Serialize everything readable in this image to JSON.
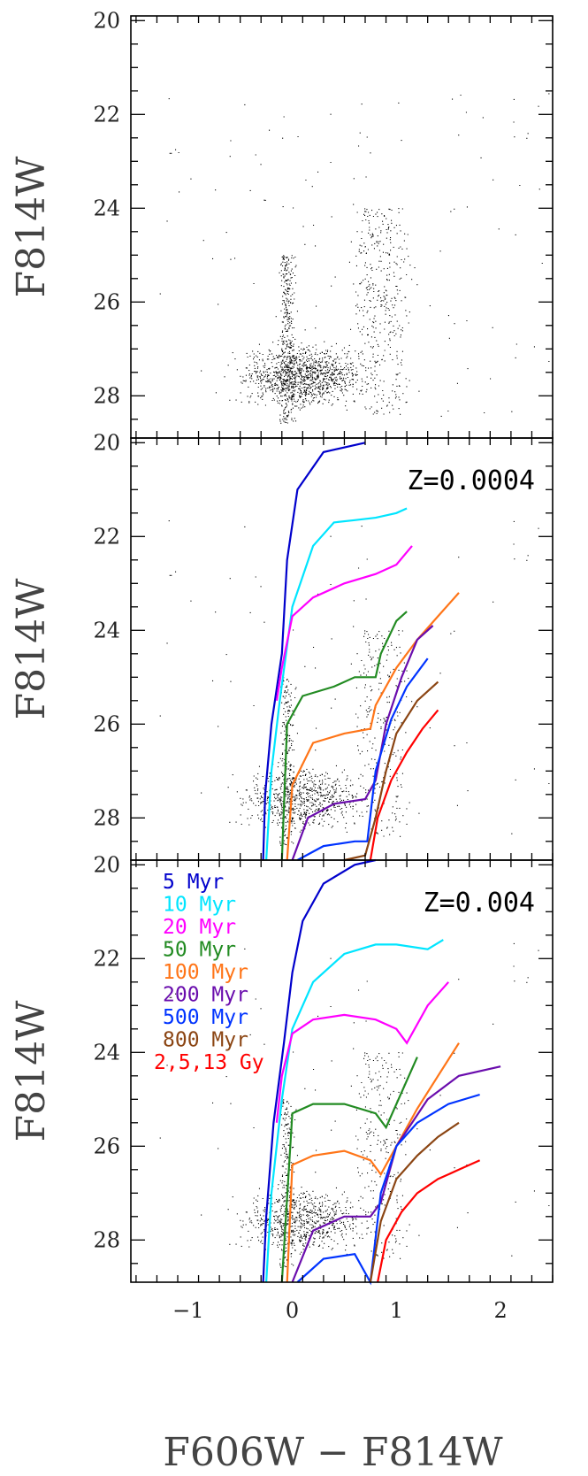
{
  "chart_data": [
    {
      "type": "scatter",
      "panel": "observed",
      "xlabel": "",
      "ylabel": "F814W",
      "xlim": [
        -1.55,
        2.5
      ],
      "ylim": [
        28.9,
        19.9
      ],
      "y_ticks": [
        "20",
        "22",
        "24",
        "26",
        "28"
      ],
      "annotation": "",
      "series": [
        {
          "color": "#000000",
          "points_described": "observed stars: blue plume near color -0.1 to 0.1 (F814W 24.5-28.6), red giant branch near color 1.0-1.3 (F814W 23-28), dense clump of faint stars F814W 26.5-28.6"
        }
      ]
    },
    {
      "type": "line",
      "panel": "isochrones",
      "xlabel": "",
      "ylabel": "F814W",
      "xlim": [
        -1.55,
        2.5
      ],
      "ylim": [
        28.9,
        19.9
      ],
      "y_ticks": [
        "20",
        "22",
        "24",
        "26",
        "28"
      ],
      "annotation": "Z=0.0004",
      "series": [
        {
          "color": "#0000cc",
          "x": [
            -0.28,
            -0.26,
            -0.2,
            -0.1,
            -0.05,
            0.05,
            0.3,
            0.7
          ],
          "y": [
            28.9,
            27.5,
            26,
            24.5,
            22.5,
            21,
            20.2,
            20.0
          ]
        },
        {
          "color": "#00e5ff",
          "x": [
            -0.25,
            -0.2,
            -0.12,
            0,
            0.2,
            0.4,
            0.6,
            0.8,
            1.0,
            1.1
          ],
          "y": [
            28.9,
            27,
            25.5,
            23.5,
            22.2,
            21.7,
            21.65,
            21.6,
            21.5,
            21.4
          ]
        },
        {
          "color": "#ff00ff",
          "x": [
            -0.15,
            -0.1,
            0,
            0.2,
            0.5,
            0.8,
            1.0,
            1.15
          ],
          "y": [
            25.5,
            24.8,
            23.7,
            23.3,
            23.0,
            22.8,
            22.6,
            22.2
          ]
        },
        {
          "color": "#228b22",
          "x": [
            -0.1,
            -0.05,
            0.1,
            0.4,
            0.6,
            0.8,
            0.85,
            1.0,
            1.1
          ],
          "y": [
            28.9,
            26,
            25.4,
            25.2,
            25.0,
            25.0,
            24.5,
            23.8,
            23.6
          ]
        },
        {
          "color": "#ff7518",
          "x": [
            -0.05,
            0,
            0.2,
            0.5,
            0.75,
            0.8,
            1.0,
            1.2,
            1.4,
            1.6
          ],
          "y": [
            28.9,
            27.3,
            26.4,
            26.2,
            26.1,
            25.6,
            24.8,
            24.2,
            23.7,
            23.2
          ]
        },
        {
          "color": "#6a0dad",
          "x": [
            0.0,
            0.15,
            0.4,
            0.7,
            0.8,
            0.9,
            1.05,
            1.2,
            1.35
          ],
          "y": [
            28.9,
            28.0,
            27.7,
            27.6,
            27.2,
            26.0,
            25.0,
            24.2,
            23.9
          ]
        },
        {
          "color": "#0033ff",
          "x": [
            0.05,
            0.3,
            0.6,
            0.72,
            0.8,
            0.95,
            1.1,
            1.3
          ],
          "y": [
            28.9,
            28.6,
            28.5,
            28.5,
            27.0,
            25.9,
            25.2,
            24.6
          ]
        },
        {
          "color": "#8b4513",
          "x": [
            0.5,
            0.7,
            0.8,
            0.9,
            1.0,
            1.2,
            1.4
          ],
          "y": [
            28.9,
            28.8,
            28.0,
            27.0,
            26.2,
            25.5,
            25.1
          ]
        },
        {
          "color": "#ff0000",
          "x": [
            0.75,
            0.82,
            0.95,
            1.1,
            1.25,
            1.4
          ],
          "y": [
            28.9,
            28.0,
            27.2,
            26.6,
            26.1,
            25.7
          ]
        }
      ]
    },
    {
      "type": "line",
      "panel": "isochrones",
      "xlabel": "F606W − F814W",
      "ylabel": "F814W",
      "xlim": [
        -1.55,
        2.5
      ],
      "ylim": [
        28.9,
        19.9
      ],
      "x_ticks": [
        "−1",
        "0",
        "1",
        "2"
      ],
      "y_ticks": [
        "20",
        "22",
        "24",
        "26",
        "28"
      ],
      "annotation": "Z=0.004",
      "legend": [
        "5 Myr",
        "10 Myr",
        "20 Myr",
        "50 Myr",
        "100 Myr",
        "200 Myr",
        "500 Myr",
        "800 Myr",
        "2,5,13 Gy"
      ],
      "legend_colors": [
        "#0000cc",
        "#00e5ff",
        "#ff00ff",
        "#228b22",
        "#ff7518",
        "#6a0dad",
        "#0033ff",
        "#8b4513",
        "#ff0000"
      ],
      "series": [
        {
          "color": "#0000cc",
          "x": [
            -0.28,
            -0.25,
            -0.18,
            -0.08,
            0,
            0.1,
            0.3,
            0.6,
            0.8
          ],
          "y": [
            28.9,
            27.5,
            25.5,
            23.8,
            22.3,
            21.2,
            20.4,
            20.0,
            19.9
          ]
        },
        {
          "color": "#00e5ff",
          "x": [
            -0.25,
            -0.2,
            -0.1,
            0,
            0.2,
            0.5,
            0.8,
            1.0,
            1.3,
            1.45
          ],
          "y": [
            28.9,
            27,
            25,
            23.5,
            22.5,
            21.9,
            21.7,
            21.7,
            21.8,
            21.6
          ]
        },
        {
          "color": "#ff00ff",
          "x": [
            -0.15,
            -0.1,
            0,
            0.2,
            0.5,
            0.8,
            1.0,
            1.1,
            1.3,
            1.5
          ],
          "y": [
            25.5,
            24.5,
            23.6,
            23.3,
            23.2,
            23.3,
            23.5,
            23.8,
            23.0,
            22.5
          ]
        },
        {
          "color": "#228b22",
          "x": [
            -0.1,
            0,
            0.2,
            0.5,
            0.8,
            0.9,
            1.1,
            1.2
          ],
          "y": [
            28.9,
            25.3,
            25.1,
            25.1,
            25.3,
            25.6,
            24.6,
            24.1
          ]
        },
        {
          "color": "#ff7518",
          "x": [
            -0.05,
            0,
            0.2,
            0.5,
            0.75,
            0.85,
            1.0,
            1.2,
            1.4,
            1.6
          ],
          "y": [
            28.9,
            26.4,
            26.2,
            26.1,
            26.3,
            26.6,
            26.0,
            25.2,
            24.5,
            23.8
          ]
        },
        {
          "color": "#6a0dad",
          "x": [
            0.0,
            0.2,
            0.5,
            0.75,
            0.85,
            1.0,
            1.3,
            1.6,
            2.0
          ],
          "y": [
            28.9,
            27.8,
            27.5,
            27.5,
            27.2,
            26.0,
            25.0,
            24.5,
            24.3
          ]
        },
        {
          "color": "#0033ff",
          "x": [
            0.05,
            0.3,
            0.6,
            0.75,
            0.85,
            1.0,
            1.2,
            1.5,
            1.8
          ],
          "y": [
            28.9,
            28.4,
            28.3,
            28.9,
            27.0,
            26.0,
            25.5,
            25.1,
            24.9
          ]
        },
        {
          "color": "#8b4513",
          "x": [
            0.75,
            0.85,
            1.0,
            1.2,
            1.4,
            1.6
          ],
          "y": [
            28.9,
            27.6,
            26.7,
            26.2,
            25.8,
            25.5
          ]
        },
        {
          "color": "#ff0000",
          "x": [
            0.82,
            0.9,
            1.05,
            1.2,
            1.4,
            1.6,
            1.8
          ],
          "y": [
            28.9,
            28.0,
            27.4,
            27.0,
            26.7,
            26.5,
            26.3
          ]
        }
      ]
    }
  ]
}
